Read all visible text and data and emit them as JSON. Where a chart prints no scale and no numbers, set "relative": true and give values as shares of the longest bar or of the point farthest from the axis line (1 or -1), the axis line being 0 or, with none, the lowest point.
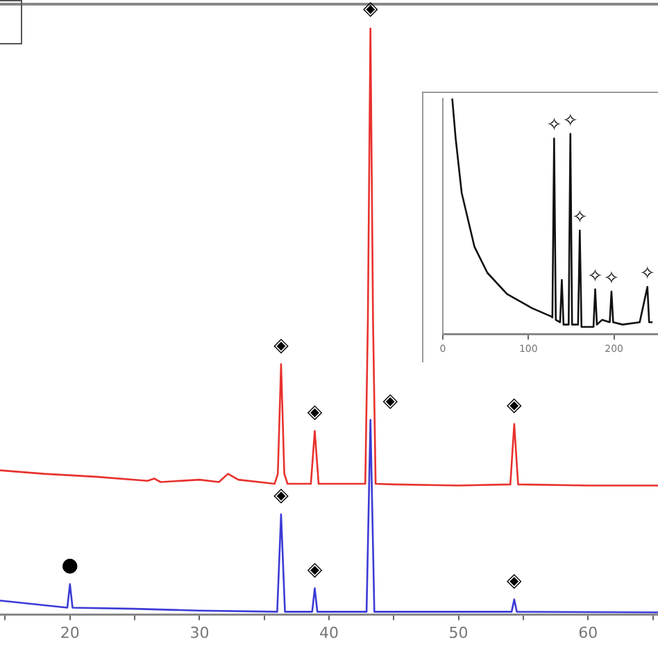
{
  "chart_data": [
    {
      "type": "line",
      "relative": true,
      "xlim": [
        14.6,
        65.4
      ],
      "xticks": [
        {
          "value": 15,
          "label": null
        },
        20,
        {
          "value": 25,
          "label": null
        },
        30,
        {
          "value": 35,
          "label": null
        },
        40,
        {
          "value": 45,
          "label": null
        },
        50,
        {
          "value": 55,
          "label": null
        },
        60,
        {
          "value": 65,
          "label": null
        }
      ],
      "grid": false,
      "legend": false,
      "tick_labels": "x",
      "marker": "none",
      "line_style": "solid",
      "series": [
        {
          "color": "#e8322e",
          "x": [
            14.6,
            18,
            22,
            26,
            26.5,
            27,
            30,
            31.5,
            32.2,
            33,
            35.8,
            36.05,
            36.3,
            36.55,
            36.8,
            38.6,
            38.9,
            39.2,
            42.8,
            43.0,
            43.2,
            43.4,
            43.6,
            45,
            50,
            54.0,
            54.3,
            54.6,
            60,
            65.4
          ],
          "values": [
            0.246,
            0.24,
            0.235,
            0.228,
            0.232,
            0.226,
            0.23,
            0.226,
            0.24,
            0.23,
            0.223,
            0.24,
            0.427,
            0.24,
            0.223,
            0.223,
            0.313,
            0.223,
            0.223,
            0.5,
            1.0,
            0.5,
            0.223,
            0.222,
            0.22,
            0.222,
            0.325,
            0.222,
            0.22,
            0.22
          ]
        },
        {
          "color": "#3b3bd6",
          "x": [
            14.6,
            19.8,
            20.0,
            20.2,
            25,
            30,
            36.0,
            36.3,
            36.6,
            38.7,
            38.9,
            39.1,
            42.9,
            43.2,
            43.5,
            54.1,
            54.3,
            54.5,
            65.4
          ],
          "values": [
            0.024,
            0.012,
            0.052,
            0.012,
            0.01,
            0.007,
            0.005,
            0.171,
            0.005,
            0.005,
            0.045,
            0.005,
            0.005,
            0.332,
            0.005,
            0.005,
            0.026,
            0.005,
            0.004
          ]
        }
      ],
      "annotations": [
        {
          "text": "◈",
          "x": 43.2,
          "y": 1.0
        },
        {
          "text": "◈",
          "x": 36.3,
          "y": 0.427
        },
        {
          "text": "◈",
          "x": 38.9,
          "y": 0.313
        },
        {
          "text": "◈",
          "x": 43.2,
          "y": 0.332
        },
        {
          "text": "◈",
          "x": 54.3,
          "y": 0.325
        },
        {
          "text": "◈",
          "x": 36.3,
          "y": 0.171
        },
        {
          "text": "◈",
          "x": 38.9,
          "y": 0.045
        },
        {
          "text": "◈",
          "x": 54.3,
          "y": 0.026
        },
        {
          "text": "●",
          "x": 20,
          "y": 0.052
        }
      ]
    },
    {
      "type": "line",
      "relative": true,
      "xlim": [
        0,
        253
      ],
      "xticks": [
        0,
        100,
        200
      ],
      "grid": false,
      "legend": false,
      "tick_labels": "x",
      "marker": "none",
      "line_style": "solid",
      "series": [
        {
          "color": "#111111",
          "x": [
            11,
            15,
            22,
            37,
            52,
            75,
            104,
            127,
            128,
            130,
            132,
            137,
            139,
            141,
            147,
            149,
            151,
            158,
            160,
            162,
            176,
            178,
            180,
            186,
            195,
            197,
            199,
            210,
            230,
            239,
            241,
            245
          ],
          "values": [
            1.0,
            0.83,
            0.6,
            0.37,
            0.26,
            0.17,
            0.11,
            0.074,
            0.07,
            0.83,
            0.06,
            0.05,
            0.23,
            0.04,
            0.04,
            0.85,
            0.04,
            0.04,
            0.44,
            0.03,
            0.03,
            0.19,
            0.04,
            0.06,
            0.05,
            0.18,
            0.05,
            0.04,
            0.05,
            0.2,
            0.05,
            0.05
          ]
        }
      ],
      "annotations": [
        {
          "text": "✧",
          "x": 130,
          "y": 0.83
        },
        {
          "text": "✧",
          "x": 149,
          "y": 0.85
        },
        {
          "text": "✧",
          "x": 160,
          "y": 0.44
        },
        {
          "text": "✧",
          "x": 178,
          "y": 0.19
        },
        {
          "text": "✧",
          "x": 197,
          "y": 0.18
        },
        {
          "text": "✧",
          "x": 239,
          "y": 0.2
        }
      ]
    }
  ]
}
